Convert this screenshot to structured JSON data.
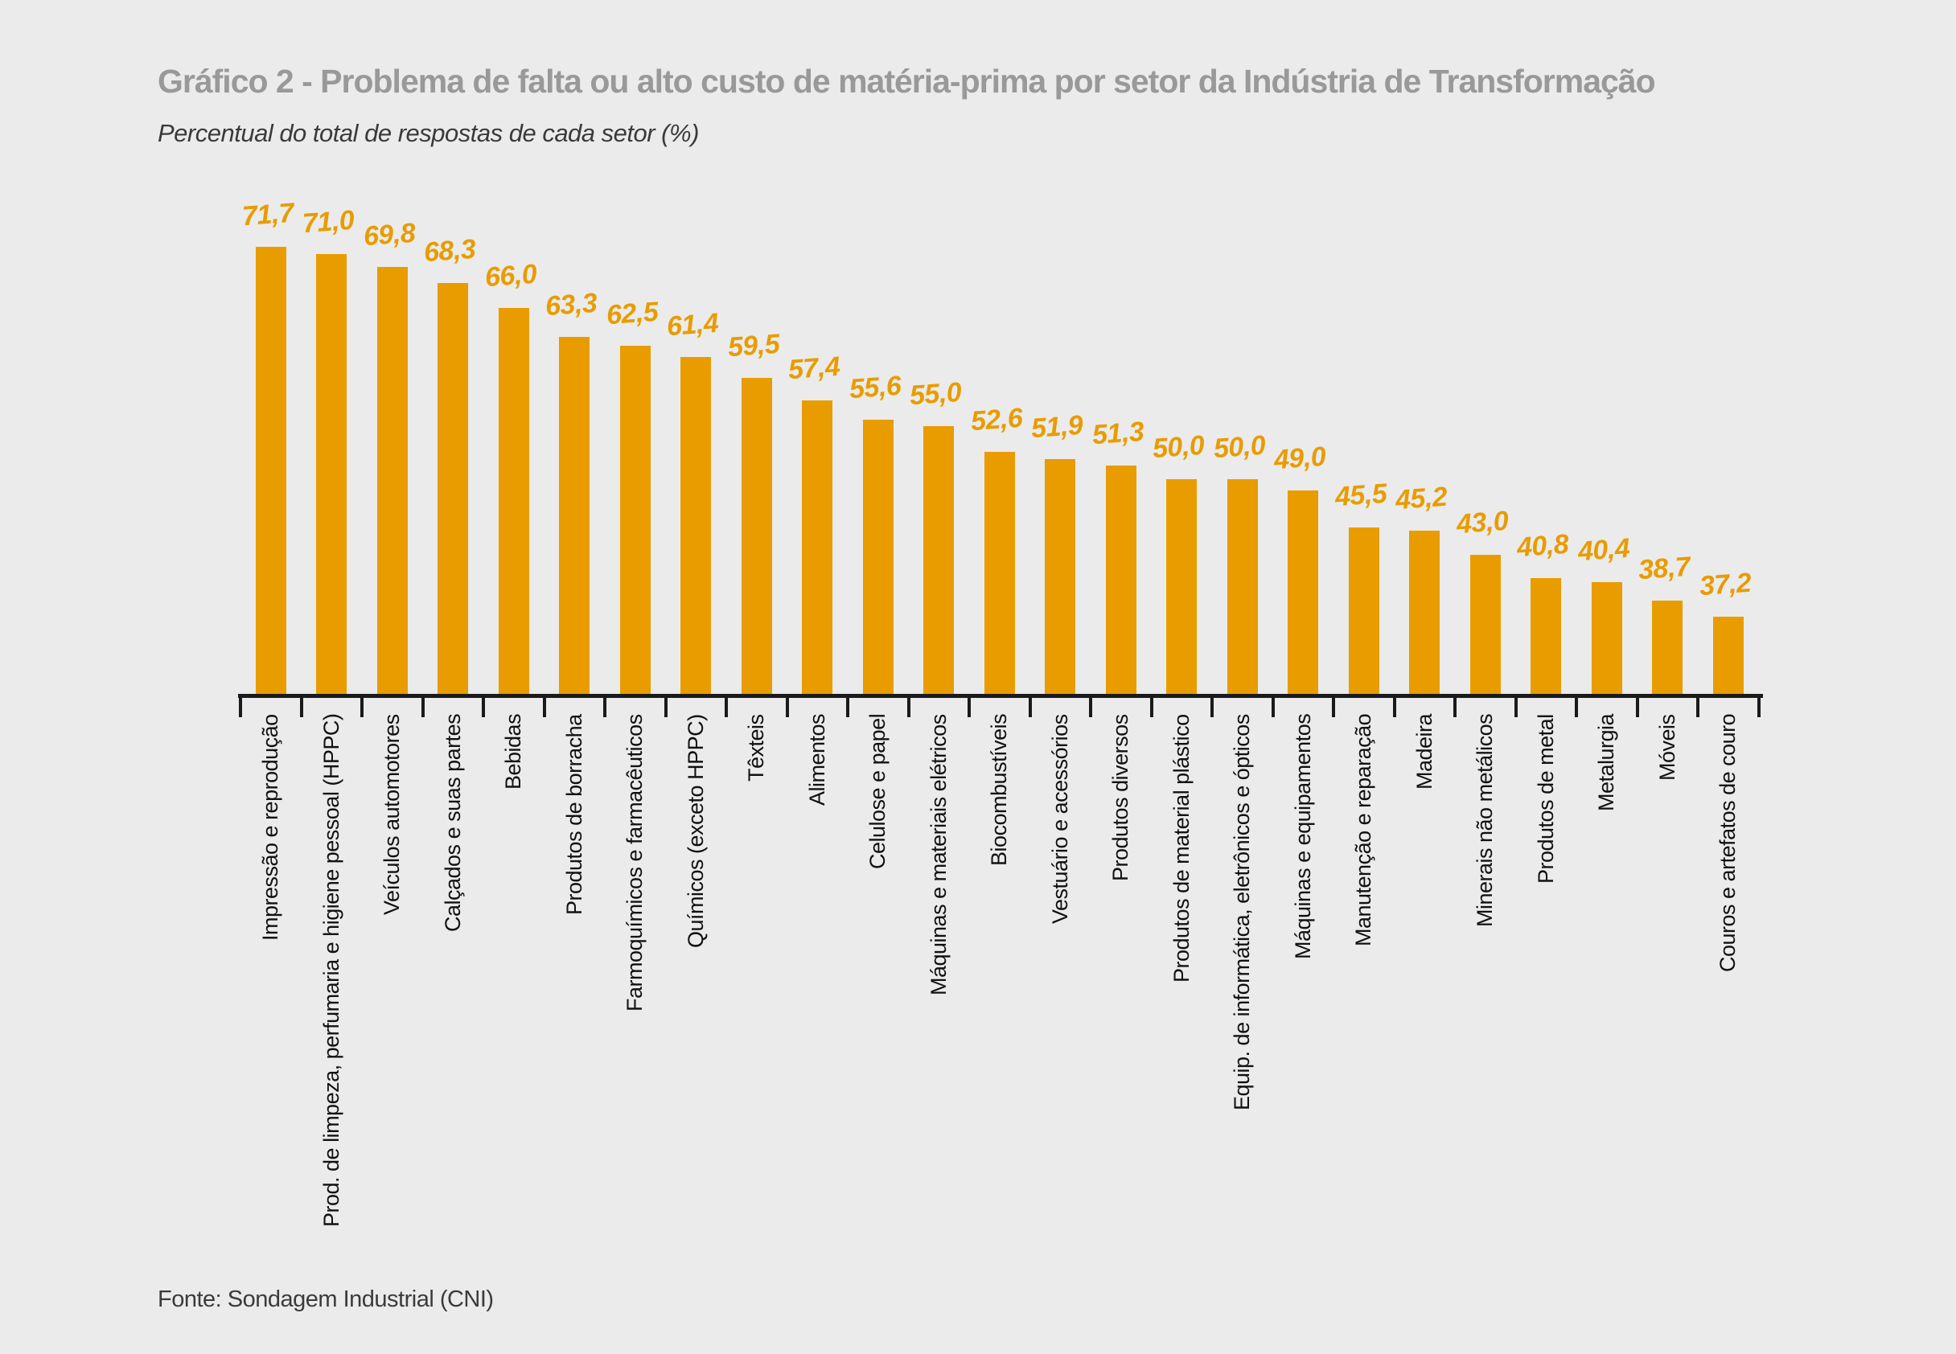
{
  "page": {
    "background": "#EBEBEB"
  },
  "header": {
    "title": "Gráfico 2 - Problema de falta ou alto custo de matéria-prima por setor da Indústria de Transformação",
    "subtitle": "Percentual do total de respostas de cada setor (%)"
  },
  "footer": {
    "source": "Fonte: Sondagem Industrial (CNI)"
  },
  "chart_data": {
    "type": "bar",
    "title": "Gráfico 2 - Problema de falta ou alto custo de matéria-prima por setor da Indústria de Transformação",
    "subtitle": "Percentual do total de respostas de cada setor (%)",
    "source": "Fonte: Sondagem Industrial (CNI)",
    "unit": "%",
    "decimal_separator": ",",
    "bar_color": "#E89C00",
    "axis_color": "#1a1a1a",
    "grid": false,
    "legend": "none",
    "ylim": [
      30,
      75
    ],
    "value_labels_shown": true,
    "category_labels_rotation_deg": 90,
    "categories": [
      "Impressão e reprodução",
      "Prod. de limpeza, perfumaria e higiene pessoal (HPPC)",
      "Veículos automotores",
      "Calçados e suas partes",
      "Bebidas",
      "Produtos de borracha",
      "Farmoquímicos e farmacêuticos",
      "Químicos (exceto HPPC)",
      "Têxteis",
      "Alimentos",
      "Celulose e papel",
      "Máquinas e materiais elétricos",
      "Biocombustíveis",
      "Vestuário e acessórios",
      "Produtos diversos",
      "Produtos de material plástico",
      "Equip. de informática, eletrônicos e ópticos",
      "Máquinas e equipamentos",
      "Manutenção e reparação",
      "Madeira",
      "Minerais não metálicos",
      "Produtos de metal",
      "Metalurgia",
      "Móveis",
      "Couros e artefatos de couro"
    ],
    "values": [
      71.7,
      71.0,
      69.8,
      68.3,
      66.0,
      63.3,
      62.5,
      61.4,
      59.5,
      57.4,
      55.6,
      55.0,
      52.6,
      51.9,
      51.3,
      50.0,
      50.0,
      49.0,
      45.5,
      45.2,
      43.0,
      40.8,
      40.4,
      38.7,
      37.2
    ],
    "value_labels": [
      "71,7",
      "71,0",
      "69,8",
      "68,3",
      "66,0",
      "63,3",
      "62,5",
      "61,4",
      "59,5",
      "57,4",
      "55,6",
      "55,0",
      "52,6",
      "51,9",
      "51,3",
      "50,0",
      "50,0",
      "49,0",
      "45,5",
      "45,2",
      "43,0",
      "40,8",
      "40,4",
      "38,7",
      "37,2"
    ]
  }
}
